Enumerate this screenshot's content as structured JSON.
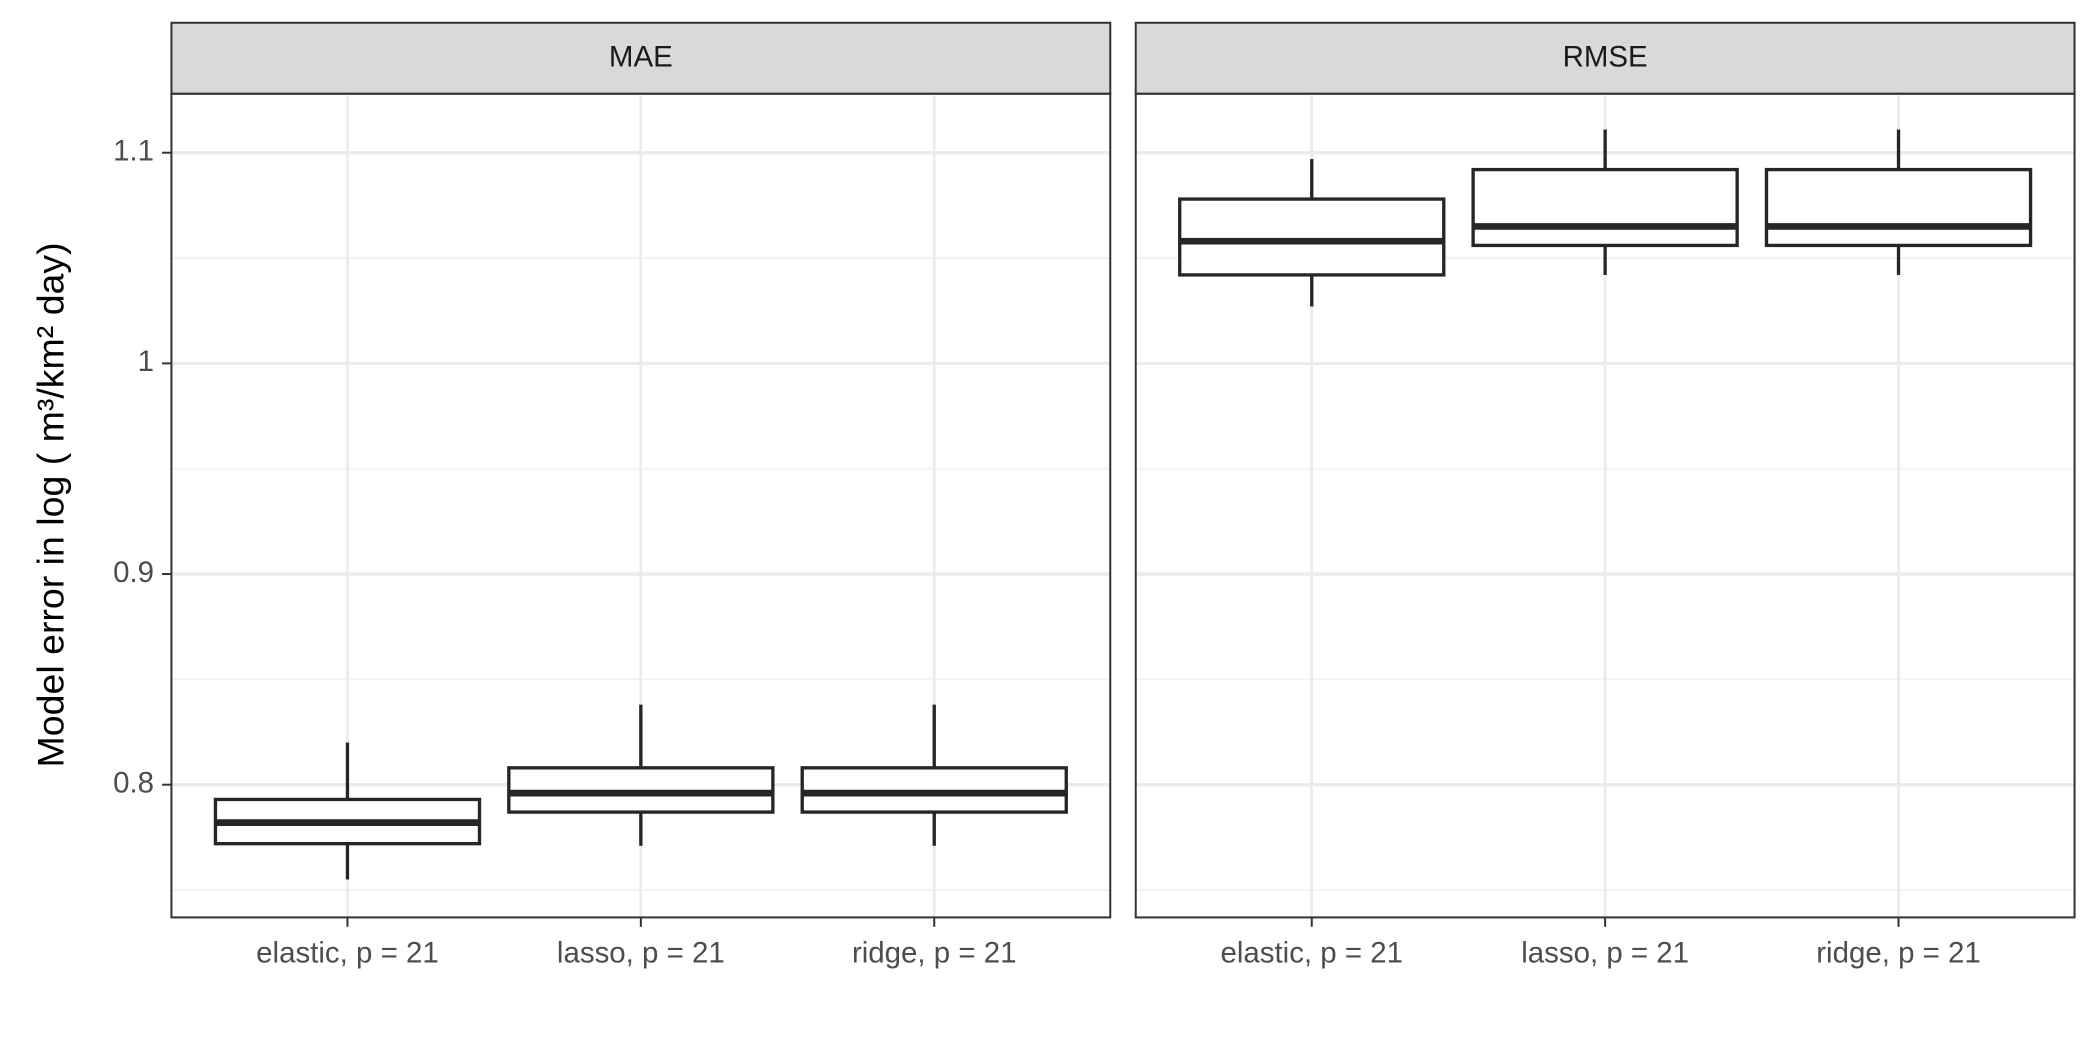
{
  "chart_data": {
    "type": "box",
    "ylabel": "Model error in log ( m³/km² day)",
    "ylim": [
      0.737,
      1.128
    ],
    "yticks": [
      0.8,
      0.9,
      1.0,
      1.1
    ],
    "minor_yticks": [
      0.75,
      0.85,
      0.95,
      1.05
    ],
    "grid": true,
    "color": "#262626",
    "facets": [
      {
        "title": "MAE",
        "categories": [
          "elastic, p = 21",
          "lasso, p = 21",
          "ridge, p = 21"
        ],
        "min": [
          0.755,
          0.771,
          0.771
        ],
        "q1": [
          0.772,
          0.787,
          0.787
        ],
        "median": [
          0.782,
          0.796,
          0.796
        ],
        "q3": [
          0.793,
          0.808,
          0.808
        ],
        "max": [
          0.82,
          0.838,
          0.838
        ]
      },
      {
        "title": "RMSE",
        "categories": [
          "elastic, p = 21",
          "lasso, p = 21",
          "ridge, p = 21"
        ],
        "min": [
          1.027,
          1.042,
          1.042
        ],
        "q1": [
          1.042,
          1.056,
          1.056
        ],
        "median": [
          1.058,
          1.065,
          1.065
        ],
        "q3": [
          1.078,
          1.092,
          1.092
        ],
        "max": [
          1.097,
          1.111,
          1.111
        ]
      }
    ]
  }
}
